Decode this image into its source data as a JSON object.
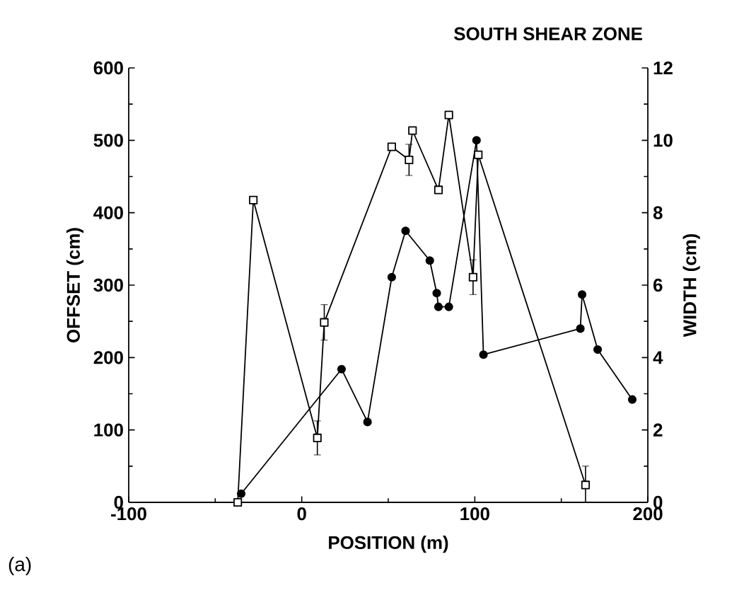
{
  "chart_data": {
    "type": "line",
    "title": "SOUTH SHEAR ZONE",
    "xlabel": "POSITION (m)",
    "ylabel": "OFFSET (cm)",
    "y2label": "WIDTH (cm)",
    "annotations": [
      "(a)"
    ],
    "xlim": [
      -100,
      200
    ],
    "xticks": [
      -100,
      0,
      100,
      200
    ],
    "ylim": [
      0,
      600
    ],
    "yticks": [
      0,
      100,
      200,
      300,
      400,
      500,
      600
    ],
    "y2lim": [
      0,
      12
    ],
    "y2ticks": [
      0,
      2,
      4,
      6,
      8,
      10,
      12
    ],
    "series": [
      {
        "color": "#000000",
        "marker": "circle",
        "x": [
          -35,
          23,
          38,
          52,
          60,
          74,
          78,
          79,
          85,
          101,
          105,
          161,
          162,
          171,
          191
        ],
        "values": [
          12,
          184,
          111,
          311,
          375,
          334,
          289,
          270,
          270,
          500,
          204,
          240,
          287,
          211,
          142
        ]
      },
      {
        "color": "#000000",
        "marker": "square",
        "axis": "y2",
        "x": [
          -37,
          -28,
          9,
          13,
          52,
          62,
          64,
          79,
          85,
          99,
          102,
          164
        ],
        "values": [
          0,
          8.35,
          1.78,
          4.97,
          9.82,
          9.46,
          10.27,
          8.63,
          10.7,
          6.22,
          9.6,
          0.48
        ],
        "errors": [
          null,
          null,
          0.47,
          0.49,
          null,
          0.43,
          null,
          null,
          null,
          0.48,
          null,
          0.52
        ]
      }
    ]
  }
}
